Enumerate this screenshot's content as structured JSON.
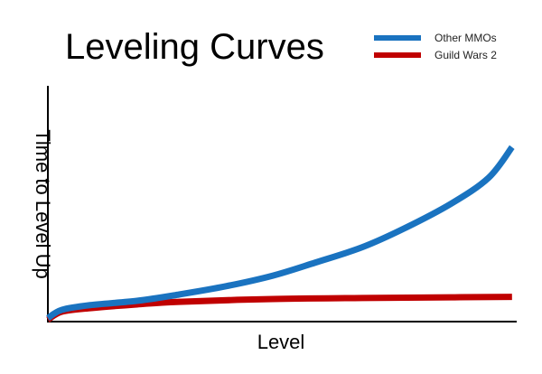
{
  "chart_data": {
    "type": "line",
    "title": "Leveling Curves",
    "xlabel": "Level",
    "ylabel": "Time to Level Up",
    "xlim": [
      0,
      100
    ],
    "ylim": [
      0,
      100
    ],
    "grid": false,
    "ticks": false,
    "legend_position": "top-right",
    "series": [
      {
        "name": "Other MMOs",
        "color": "#1a73c0",
        "x": [
          0,
          3,
          9,
          19,
          28,
          38,
          48,
          57,
          67,
          76,
          86,
          94,
          99
        ],
        "y": [
          1.5,
          5,
          7,
          8.8,
          11.5,
          15,
          19.5,
          25,
          31.5,
          39.5,
          50,
          61,
          74
        ]
      },
      {
        "name": "Guild Wars 2",
        "color": "#c00000",
        "x": [
          0,
          3,
          9,
          19,
          28,
          48,
          67,
          86,
          99
        ],
        "y": [
          0.8,
          4.2,
          5.7,
          7.3,
          8.4,
          9.6,
          10,
          10.3,
          10.5
        ]
      }
    ]
  }
}
